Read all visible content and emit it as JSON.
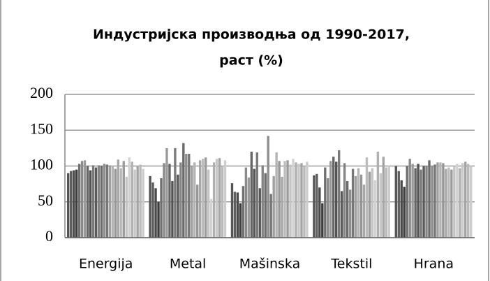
{
  "chart_data": {
    "type": "bar",
    "title": [
      "Индустријска производња од 1990-2017,",
      "раст (%)"
    ],
    "categories": [
      "Energija",
      "Metal",
      "Mašinska",
      "Tekstil",
      "Hrana"
    ],
    "ylim": [
      0,
      200
    ],
    "yticks": [
      0,
      50,
      100,
      150,
      200
    ],
    "grid": true,
    "series": [
      {
        "color": "#555555",
        "values": [
          90,
          86,
          76,
          87,
          100
        ]
      },
      {
        "color": "#5f5f5f",
        "values": [
          93,
          77,
          64,
          89,
          93
        ]
      },
      {
        "color": "#4a4a4a",
        "values": [
          94,
          69,
          63,
          70,
          80
        ]
      },
      {
        "color": "#3c3c3c",
        "values": [
          95,
          50,
          48,
          48,
          71
        ]
      },
      {
        "color": "#707070",
        "values": [
          103,
          83,
          72,
          98,
          100
        ]
      },
      {
        "color": "#8a8a8a",
        "values": [
          107,
          104,
          98,
          83,
          110
        ]
      },
      {
        "color": "#9a9a9a",
        "values": [
          108,
          125,
          84,
          107,
          103
        ]
      },
      {
        "color": "#666666",
        "values": [
          100,
          103,
          120,
          113,
          97
        ]
      },
      {
        "color": "#525252",
        "values": [
          94,
          79,
          96,
          106,
          103
        ]
      },
      {
        "color": "#7a7a7a",
        "values": [
          101,
          125,
          119,
          122,
          95
        ]
      },
      {
        "color": "#5a5a5a",
        "values": [
          98,
          88,
          69,
          65,
          100
        ]
      },
      {
        "color": "#848484",
        "values": [
          101,
          105,
          101,
          104,
          100
        ]
      },
      {
        "color": "#6a6a6a",
        "values": [
          100,
          132,
          90,
          79,
          108
        ]
      },
      {
        "color": "#8e8e8e",
        "values": [
          103,
          117,
          142,
          67,
          100
        ]
      },
      {
        "color": "#777777",
        "values": [
          102,
          117,
          61,
          96,
          102
        ]
      },
      {
        "color": "#a0a0a0",
        "values": [
          101,
          100,
          86,
          86,
          105
        ]
      },
      {
        "color": "#b4b4b4",
        "values": [
          100,
          105,
          119,
          97,
          105
        ]
      },
      {
        "color": "#969696",
        "values": [
          96,
          74,
          107,
          88,
          104
        ]
      },
      {
        "color": "#a8a8a8",
        "values": [
          109,
          108,
          85,
          74,
          96
        ]
      },
      {
        "color": "#bcbcbc",
        "values": [
          97,
          110,
          107,
          112,
          98
        ]
      },
      {
        "color": "#9c9c9c",
        "values": [
          107,
          112,
          108,
          92,
          95
        ]
      },
      {
        "color": "#c4c4c4",
        "values": [
          85,
          95,
          102,
          97,
          100
        ]
      },
      {
        "color": "#d2d2d2",
        "values": [
          112,
          54,
          110,
          80,
          103
        ]
      },
      {
        "color": "#b0b0b0",
        "values": [
          106,
          105,
          105,
          120,
          97
        ]
      },
      {
        "color": "#c8c8c8",
        "values": [
          95,
          110,
          103,
          90,
          104
        ]
      },
      {
        "color": "#a4a4a4",
        "values": [
          100,
          111,
          104,
          113,
          106
        ]
      },
      {
        "color": "#bababa",
        "values": [
          102,
          100,
          100,
          98,
          103
        ]
      },
      {
        "color": "#cccccc",
        "values": [
          96,
          108,
          106,
          100,
          100
        ]
      }
    ]
  }
}
